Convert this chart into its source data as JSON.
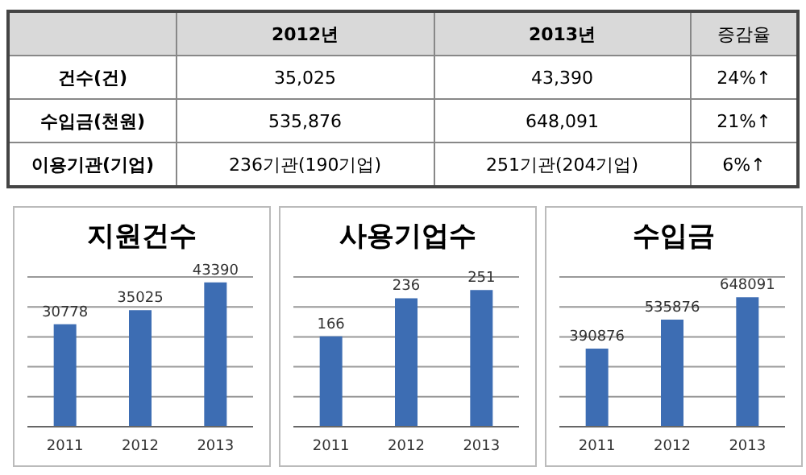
{
  "chart_data": [
    {
      "type": "other",
      "categories": [
        "건수(건)",
        "수입금(천원)",
        "이용기관(기업)"
      ],
      "series": [
        {
          "name": "2012년",
          "values": [
            null,
            null,
            null
          ],
          "value_labels": [
            "35,025",
            "535,876",
            "236기관(190기업)"
          ]
        },
        {
          "name": "2013년",
          "values": [
            null,
            null,
            null
          ],
          "value_labels": [
            "43,390",
            "648,091",
            "251기관(204기업)"
          ]
        },
        {
          "name": "증감율",
          "values": [
            null,
            null,
            null
          ],
          "value_labels": [
            "24%↑",
            "21%↑",
            "6%↑"
          ]
        }
      ]
    },
    {
      "type": "bar",
      "title": "지원건수",
      "categories": [
        "2011",
        "2012",
        "2013"
      ],
      "values": [
        30778,
        35025,
        43390
      ],
      "color": "#3d6db3",
      "grid": "y",
      "tick_labels": "x",
      "data_labels": true
    },
    {
      "type": "bar",
      "title": "사용기업수",
      "categories": [
        "2011",
        "2012",
        "2013"
      ],
      "values": [
        166,
        236,
        251
      ],
      "color": "#3d6db3",
      "grid": "y",
      "tick_labels": "x",
      "data_labels": true
    },
    {
      "type": "bar",
      "title": "수입금",
      "categories": [
        "2011",
        "2012",
        "2013"
      ],
      "values": [
        390876,
        535876,
        648091
      ],
      "color": "#3d6db3",
      "grid": "y",
      "tick_labels": "x",
      "data_labels": true
    }
  ]
}
